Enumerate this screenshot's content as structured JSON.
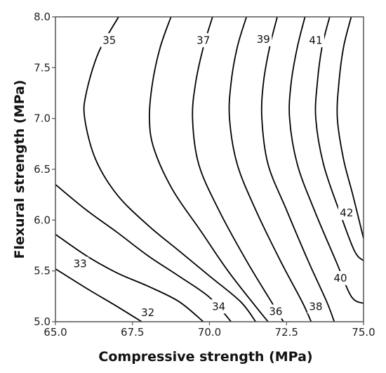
{
  "chart_data": {
    "type": "contour",
    "xlabel": "Compressive strength (MPa)",
    "ylabel": "Flexural strength (MPa)",
    "xlim": [
      65.0,
      75.0
    ],
    "ylim": [
      5.0,
      8.0
    ],
    "x_ticks": [
      "65.0",
      "67.5",
      "70.0",
      "72.5",
      "75.0"
    ],
    "y_ticks": [
      "5.0",
      "5.5",
      "6.0",
      "6.5",
      "7.0",
      "7.5",
      "8.0"
    ],
    "grid": false,
    "line_color": "#000000",
    "contours": [
      {
        "level": "32",
        "points": [
          [
            65.0,
            5.52
          ],
          [
            66.0,
            5.33
          ],
          [
            67.0,
            5.15
          ],
          [
            67.8,
            5.0
          ]
        ],
        "label_at": [
          68.0,
          5.09
        ]
      },
      {
        "level": "33",
        "points": [
          [
            65.0,
            5.86
          ],
          [
            66.0,
            5.65
          ],
          [
            67.0,
            5.48
          ],
          [
            68.0,
            5.35
          ],
          [
            69.0,
            5.2
          ],
          [
            69.8,
            5.0
          ]
        ],
        "label_at": [
          65.8,
          5.57
        ]
      },
      {
        "level": "34",
        "points": [
          [
            65.0,
            6.35
          ],
          [
            66.0,
            6.1
          ],
          [
            67.0,
            5.88
          ],
          [
            68.0,
            5.65
          ],
          [
            69.0,
            5.45
          ],
          [
            70.0,
            5.24
          ],
          [
            70.7,
            5.0
          ]
        ],
        "label_at": [
          70.3,
          5.15
        ]
      },
      {
        "level": "35",
        "points": [
          [
            67.05,
            8.0
          ],
          [
            66.4,
            7.65
          ],
          [
            66.0,
            7.25
          ],
          [
            65.95,
            7.0
          ],
          [
            66.3,
            6.6
          ],
          [
            67.0,
            6.25
          ],
          [
            68.0,
            5.95
          ],
          [
            69.0,
            5.7
          ],
          [
            70.0,
            5.45
          ],
          [
            71.0,
            5.2
          ],
          [
            71.5,
            5.0
          ]
        ],
        "label_at": [
          66.75,
          7.77
        ]
      },
      {
        "level": "36",
        "points": [
          [
            68.75,
            8.0
          ],
          [
            68.4,
            7.7
          ],
          [
            68.15,
            7.35
          ],
          [
            68.05,
            7.0
          ],
          [
            68.2,
            6.7
          ],
          [
            68.8,
            6.3
          ],
          [
            69.7,
            5.9
          ],
          [
            70.6,
            5.5
          ],
          [
            71.5,
            5.15
          ],
          [
            71.9,
            5.0
          ]
        ],
        "label_at": [
          72.15,
          5.1
        ]
      },
      {
        "level": "37",
        "points": [
          [
            70.1,
            8.0
          ],
          [
            69.8,
            7.7
          ],
          [
            69.55,
            7.35
          ],
          [
            69.45,
            7.0
          ],
          [
            69.65,
            6.55
          ],
          [
            70.3,
            6.1
          ],
          [
            71.2,
            5.6
          ],
          [
            72.0,
            5.2
          ],
          [
            72.4,
            5.0
          ]
        ],
        "label_at": [
          69.8,
          7.77
        ]
      },
      {
        "level": "38",
        "points": [
          [
            71.2,
            8.0
          ],
          [
            70.9,
            7.7
          ],
          [
            70.7,
            7.35
          ],
          [
            70.65,
            7.0
          ],
          [
            70.9,
            6.55
          ],
          [
            71.5,
            6.1
          ],
          [
            72.3,
            5.6
          ],
          [
            73.0,
            5.2
          ],
          [
            73.3,
            5.0
          ]
        ],
        "label_at": [
          73.45,
          5.15
        ]
      },
      {
        "level": "39",
        "points": [
          [
            72.2,
            8.0
          ],
          [
            71.95,
            7.7
          ],
          [
            71.75,
            7.35
          ],
          [
            71.7,
            7.0
          ],
          [
            71.9,
            6.55
          ],
          [
            72.5,
            6.1
          ],
          [
            73.2,
            5.6
          ],
          [
            73.8,
            5.2
          ],
          [
            74.05,
            5.0
          ]
        ],
        "label_at": [
          71.75,
          7.78
        ]
      },
      {
        "level": "40",
        "points": [
          [
            73.1,
            8.0
          ],
          [
            72.85,
            7.7
          ],
          [
            72.65,
            7.35
          ],
          [
            72.6,
            7.0
          ],
          [
            72.85,
            6.55
          ],
          [
            73.4,
            6.1
          ],
          [
            74.1,
            5.6
          ],
          [
            74.6,
            5.25
          ],
          [
            75.0,
            5.18
          ]
        ],
        "label_at": [
          74.25,
          5.43
        ]
      },
      {
        "level": "41",
        "points": [
          [
            73.9,
            8.0
          ],
          [
            73.65,
            7.7
          ],
          [
            73.5,
            7.35
          ],
          [
            73.45,
            7.0
          ],
          [
            73.7,
            6.55
          ],
          [
            74.2,
            6.1
          ],
          [
            74.7,
            5.7
          ],
          [
            75.0,
            5.6
          ]
        ],
        "label_at": [
          73.45,
          7.77
        ]
      },
      {
        "level": "42",
        "points": [
          [
            74.6,
            8.0
          ],
          [
            74.35,
            7.7
          ],
          [
            74.2,
            7.35
          ],
          [
            74.15,
            7.0
          ],
          [
            74.35,
            6.6
          ],
          [
            74.65,
            6.25
          ],
          [
            75.0,
            5.82
          ]
        ],
        "label_at": [
          74.45,
          6.07
        ]
      }
    ]
  }
}
